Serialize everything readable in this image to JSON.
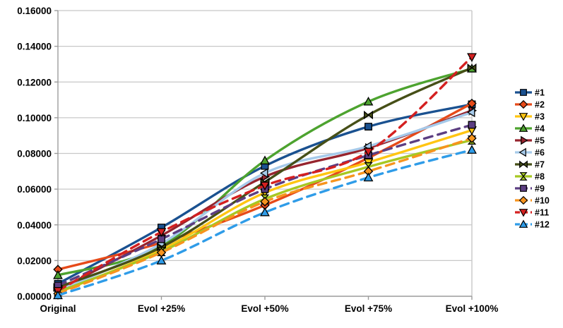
{
  "colors": {
    "background": "#FFFFFF",
    "gridline": "#C8C8C8",
    "axis_line": "#9C9C9C",
    "text": "#000000"
  },
  "chart_data": {
    "type": "line",
    "title": "",
    "xlabel": "",
    "ylabel": "",
    "grid": true,
    "smoothed_lines": true,
    "legend_position": "right",
    "categories": [
      "Original",
      "Evol +25%",
      "Evol +50%",
      "Evol +75%",
      "Evol +100%"
    ],
    "y_axis": {
      "min": 0,
      "max": 0.16,
      "step": 0.02,
      "tick_labels": [
        "0.00000",
        "0.02000",
        "0.04000",
        "0.06000",
        "0.08000",
        "0.10000",
        "0.12000",
        "0.14000",
        "0.16000"
      ]
    },
    "series": [
      {
        "name": "#1",
        "color": "#1A5190",
        "marker": "square",
        "line_style": "solid",
        "values": [
          0.007,
          0.0385,
          0.073,
          0.095,
          0.1075
        ]
      },
      {
        "name": "#2",
        "color": "#E64A19",
        "marker": "diamond",
        "line_style": "solid",
        "values": [
          0.015,
          0.03,
          0.051,
          0.0775,
          0.108
        ]
      },
      {
        "name": "#3",
        "color": "#FFC512",
        "marker": "triangle-down",
        "line_style": "solid",
        "values": [
          0.002,
          0.026,
          0.058,
          0.075,
          0.093
        ]
      },
      {
        "name": "#4",
        "color": "#4DA32F",
        "marker": "triangle-up",
        "line_style": "solid",
        "values": [
          0.0118,
          0.028,
          0.076,
          0.109,
          0.1275
        ]
      },
      {
        "name": "#5",
        "color": "#96242E",
        "marker": "triangle-right",
        "line_style": "solid",
        "values": [
          0.0035,
          0.034,
          0.067,
          0.083,
          0.104
        ]
      },
      {
        "name": "#6",
        "color": "#A6CAEA",
        "marker": "triangle-left",
        "line_style": "solid",
        "values": [
          0.003,
          0.0295,
          0.069,
          0.084,
          0.103
        ]
      },
      {
        "name": "#7",
        "color": "#464F17",
        "marker": "bowtie-h",
        "line_style": "solid",
        "values": [
          0.005,
          0.0275,
          0.064,
          0.1015,
          0.128
        ]
      },
      {
        "name": "#8",
        "color": "#A6C822",
        "marker": "bowtie-v",
        "line_style": "solid",
        "values": [
          0.0025,
          0.025,
          0.0545,
          0.0725,
          0.0875
        ]
      },
      {
        "name": "#9",
        "color": "#5C3E82",
        "marker": "square",
        "line_style": "dashed",
        "values": [
          0.006,
          0.032,
          0.06,
          0.079,
          0.096
        ]
      },
      {
        "name": "#10",
        "color": "#F7941E",
        "marker": "diamond",
        "line_style": "dashed",
        "values": [
          0.0015,
          0.0245,
          0.053,
          0.07,
          0.0885
        ]
      },
      {
        "name": "#11",
        "color": "#D42020",
        "marker": "triangle-down",
        "line_style": "dashed",
        "values": [
          0.003,
          0.036,
          0.062,
          0.081,
          0.134
        ]
      },
      {
        "name": "#12",
        "color": "#2F9CE8",
        "marker": "triangle-up",
        "line_style": "dashed",
        "values": [
          0.0005,
          0.02,
          0.047,
          0.0665,
          0.082
        ]
      }
    ]
  }
}
